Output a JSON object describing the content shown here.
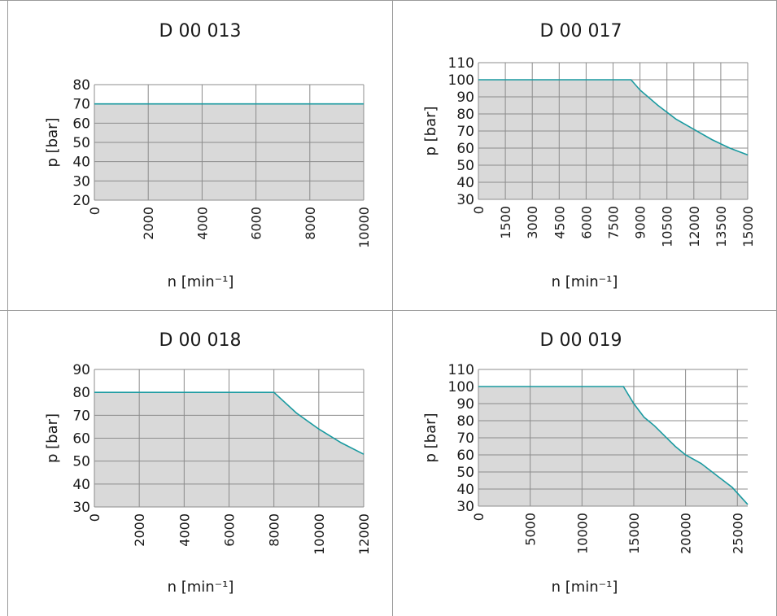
{
  "chart_data": [
    {
      "type": "area",
      "title": "D 00 013",
      "xlabel": "n [min⁻¹]",
      "ylabel": "p [bar]",
      "xlim": [
        0,
        10000
      ],
      "ylim": [
        20,
        80
      ],
      "xticks": [
        0,
        2000,
        4000,
        6000,
        8000,
        10000
      ],
      "yticks": [
        20,
        30,
        40,
        50,
        60,
        70,
        80
      ],
      "grid": true,
      "series": [
        {
          "x": [
            0,
            10000
          ],
          "y": [
            70,
            70
          ]
        }
      ]
    },
    {
      "type": "area",
      "title": "D 00 017",
      "xlabel": "n [min⁻¹]",
      "ylabel": "p [bar]",
      "xlim": [
        0,
        15000
      ],
      "ylim": [
        30,
        110
      ],
      "xticks": [
        0,
        1500,
        3000,
        4500,
        6000,
        7500,
        9000,
        10500,
        12000,
        13500,
        15000
      ],
      "yticks": [
        30,
        40,
        50,
        60,
        70,
        80,
        90,
        100,
        110
      ],
      "grid": true,
      "series": [
        {
          "x": [
            0,
            8500,
            9000,
            10000,
            11000,
            12000,
            13000,
            14000,
            15000
          ],
          "y": [
            100,
            100,
            94,
            85,
            77,
            71,
            65,
            60,
            56
          ]
        }
      ]
    },
    {
      "type": "area",
      "title": "D 00 018",
      "xlabel": "n [min⁻¹]",
      "ylabel": "p [bar]",
      "xlim": [
        0,
        12000
      ],
      "ylim": [
        30,
        90
      ],
      "xticks": [
        0,
        2000,
        4000,
        6000,
        8000,
        10000,
        12000
      ],
      "yticks": [
        30,
        40,
        50,
        60,
        70,
        80,
        90
      ],
      "grid": true,
      "series": [
        {
          "x": [
            0,
            8000,
            9000,
            10000,
            11000,
            12000
          ],
          "y": [
            80,
            80,
            71,
            64,
            58,
            53
          ]
        }
      ]
    },
    {
      "type": "area",
      "title": "D 00 019",
      "xlabel": "n [min⁻¹]",
      "ylabel": "p [bar]",
      "xlim": [
        0,
        26000
      ],
      "ylim": [
        30,
        110
      ],
      "xticks": [
        0,
        5000,
        10000,
        15000,
        20000,
        25000
      ],
      "yticks": [
        30,
        40,
        50,
        60,
        70,
        80,
        90,
        100,
        110
      ],
      "grid": true,
      "series": [
        {
          "x": [
            0,
            14000,
            15000,
            16000,
            17000,
            18000,
            19000,
            20000,
            21500,
            23000,
            24500,
            26000
          ],
          "y": [
            100,
            100,
            90,
            82,
            77,
            71,
            65,
            60,
            55,
            48,
            41,
            31
          ]
        }
      ]
    }
  ],
  "colors": {
    "line": "#1a9aa0",
    "fill": "#d9d9d9",
    "grid": "#8c8c8c",
    "border": "#9a9a9a",
    "text": "#1a1a1a"
  }
}
